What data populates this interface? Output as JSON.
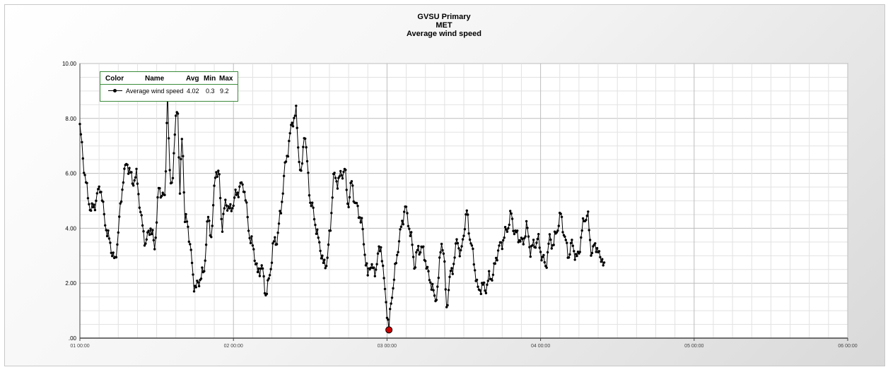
{
  "chart_data": {
    "type": "line",
    "title": [
      "GVSU Primary",
      "MET",
      "Average wind speed"
    ],
    "xlabel": "",
    "ylabel": "",
    "ylim": [
      0,
      10
    ],
    "yticks": [
      {
        "value": 0,
        "label": ".00"
      },
      {
        "value": 2,
        "label": "2.00"
      },
      {
        "value": 4,
        "label": "4.00"
      },
      {
        "value": 6,
        "label": "6.00"
      },
      {
        "value": 8,
        "label": "8.00"
      },
      {
        "value": 10,
        "label": "10.00"
      }
    ],
    "xticks": [
      "01 00:00",
      "02 00:00",
      "03 00:00",
      "04 00:00",
      "05 00:00",
      "06 00:00"
    ],
    "grid": true,
    "legend": {
      "placement": "top-left",
      "headers": [
        "Color",
        "Name",
        "Avg",
        "Min",
        "Max"
      ],
      "entries": [
        {
          "name": "Average wind speed",
          "avg": "4.02",
          "min": "0.3",
          "max": "9.2"
        }
      ]
    },
    "series": [
      {
        "name": "Average wind speed",
        "color": "#000000",
        "marker_highlight_color": "#cc0000",
        "x_unit": "hours from 01 00:00",
        "keypoints": [
          [
            0,
            7.7
          ],
          [
            0.6,
            6.3
          ],
          [
            1.2,
            5.2
          ],
          [
            1.8,
            4.6
          ],
          [
            2.5,
            5.0
          ],
          [
            3.2,
            5.6
          ],
          [
            3.8,
            4.4
          ],
          [
            4.4,
            3.7
          ],
          [
            5.0,
            3.2
          ],
          [
            5.5,
            2.7
          ],
          [
            6.0,
            3.9
          ],
          [
            6.8,
            5.9
          ],
          [
            7.4,
            6.4
          ],
          [
            8.2,
            5.7
          ],
          [
            8.9,
            5.9
          ],
          [
            9.6,
            4.3
          ],
          [
            10.3,
            3.4
          ],
          [
            11.0,
            4.1
          ],
          [
            11.7,
            3.3
          ],
          [
            12.3,
            5.4
          ],
          [
            12.8,
            5.3
          ],
          [
            13.3,
            5.0
          ],
          [
            13.7,
            9.2
          ],
          [
            14.0,
            6.0
          ],
          [
            14.3,
            5.6
          ],
          [
            14.6,
            6.2
          ],
          [
            15.0,
            8.0
          ],
          [
            15.3,
            8.6
          ],
          [
            15.6,
            5.0
          ],
          [
            16.0,
            7.7
          ],
          [
            16.4,
            4.2
          ],
          [
            16.8,
            4.3
          ],
          [
            17.3,
            3.2
          ],
          [
            17.8,
            2.0
          ],
          [
            18.2,
            1.8
          ],
          [
            18.8,
            2.2
          ],
          [
            19.4,
            2.4
          ],
          [
            20.0,
            4.4
          ],
          [
            20.6,
            3.7
          ],
          [
            21.2,
            6.2
          ],
          [
            21.8,
            5.8
          ],
          [
            22.2,
            4.0
          ],
          [
            22.8,
            5.0
          ],
          [
            23.5,
            4.6
          ],
          [
            24.2,
            5.1
          ],
          [
            25.0,
            5.5
          ],
          [
            25.6,
            5.6
          ],
          [
            26.0,
            4.8
          ],
          [
            26.6,
            3.6
          ],
          [
            27.2,
            3.2
          ],
          [
            27.8,
            2.3
          ],
          [
            28.4,
            2.7
          ],
          [
            29.0,
            1.6
          ],
          [
            29.6,
            2.1
          ],
          [
            30.2,
            3.4
          ],
          [
            30.8,
            3.6
          ],
          [
            31.4,
            4.6
          ],
          [
            32.0,
            6.1
          ],
          [
            32.6,
            7.0
          ],
          [
            33.2,
            7.9
          ],
          [
            33.8,
            8.2
          ],
          [
            34.2,
            6.7
          ],
          [
            34.6,
            5.8
          ],
          [
            35.1,
            7.7
          ],
          [
            35.5,
            6.4
          ],
          [
            36.0,
            5.0
          ],
          [
            36.6,
            4.5
          ],
          [
            37.2,
            3.6
          ],
          [
            37.6,
            3.3
          ],
          [
            38.1,
            2.6
          ],
          [
            38.6,
            2.8
          ],
          [
            39.2,
            4.1
          ],
          [
            39.6,
            5.9
          ],
          [
            40.2,
            5.7
          ],
          [
            40.8,
            5.9
          ],
          [
            41.4,
            6.2
          ],
          [
            41.9,
            4.8
          ],
          [
            42.5,
            5.7
          ],
          [
            43.0,
            4.9
          ],
          [
            43.6,
            4.6
          ],
          [
            44.1,
            4.1
          ],
          [
            44.5,
            3.2
          ],
          [
            45.0,
            2.2
          ],
          [
            45.4,
            2.8
          ],
          [
            46.0,
            2.3
          ],
          [
            46.6,
            3.0
          ],
          [
            47.1,
            3.4
          ],
          [
            47.5,
            2.1
          ],
          [
            48.0,
            1.0
          ],
          [
            48.3,
            0.3
          ],
          [
            48.7,
            1.5
          ],
          [
            49.2,
            2.3
          ],
          [
            49.7,
            3.3
          ],
          [
            50.3,
            4.1
          ],
          [
            50.8,
            4.8
          ],
          [
            51.3,
            4.3
          ],
          [
            51.8,
            3.6
          ],
          [
            52.3,
            2.6
          ],
          [
            52.8,
            3.2
          ],
          [
            53.4,
            3.3
          ],
          [
            54.0,
            2.9
          ],
          [
            54.5,
            2.2
          ],
          [
            55.0,
            2.0
          ],
          [
            55.5,
            1.3
          ],
          [
            56.0,
            2.0
          ],
          [
            56.5,
            3.6
          ],
          [
            56.9,
            3.0
          ],
          [
            57.3,
            1.1
          ],
          [
            57.9,
            2.3
          ],
          [
            58.5,
            2.8
          ],
          [
            59.0,
            3.7
          ],
          [
            59.5,
            2.9
          ],
          [
            60.0,
            3.9
          ],
          [
            60.5,
            4.6
          ],
          [
            61.0,
            3.6
          ],
          [
            61.6,
            2.8
          ],
          [
            62.2,
            1.7
          ],
          [
            62.8,
            1.9
          ],
          [
            63.4,
            1.8
          ],
          [
            64.0,
            2.2
          ],
          [
            64.6,
            2.3
          ],
          [
            65.2,
            3.1
          ],
          [
            66.0,
            3.5
          ],
          [
            66.8,
            4.0
          ],
          [
            67.4,
            4.5
          ],
          [
            68.0,
            3.8
          ],
          [
            68.6,
            3.7
          ],
          [
            69.2,
            3.4
          ],
          [
            69.8,
            4.1
          ],
          [
            70.4,
            3.2
          ],
          [
            71.0,
            3.4
          ],
          [
            71.6,
            3.6
          ],
          [
            72.2,
            3.0
          ],
          [
            72.8,
            2.6
          ],
          [
            73.4,
            3.6
          ],
          [
            74.0,
            3.4
          ],
          [
            74.6,
            4.0
          ],
          [
            75.2,
            4.5
          ],
          [
            75.8,
            3.6
          ],
          [
            76.4,
            3.0
          ],
          [
            77.0,
            3.5
          ],
          [
            77.6,
            2.8
          ],
          [
            78.2,
            3.4
          ],
          [
            78.8,
            4.4
          ],
          [
            79.4,
            4.4
          ],
          [
            80.0,
            3.0
          ],
          [
            80.6,
            3.5
          ],
          [
            81.2,
            2.9
          ],
          [
            81.6,
            3.0
          ],
          [
            82.0,
            2.4
          ]
        ],
        "highlights": [
          {
            "label": "max",
            "x": 13.7,
            "y": 9.2
          },
          {
            "label": "min",
            "x": 48.3,
            "y": 0.3
          }
        ]
      }
    ]
  }
}
